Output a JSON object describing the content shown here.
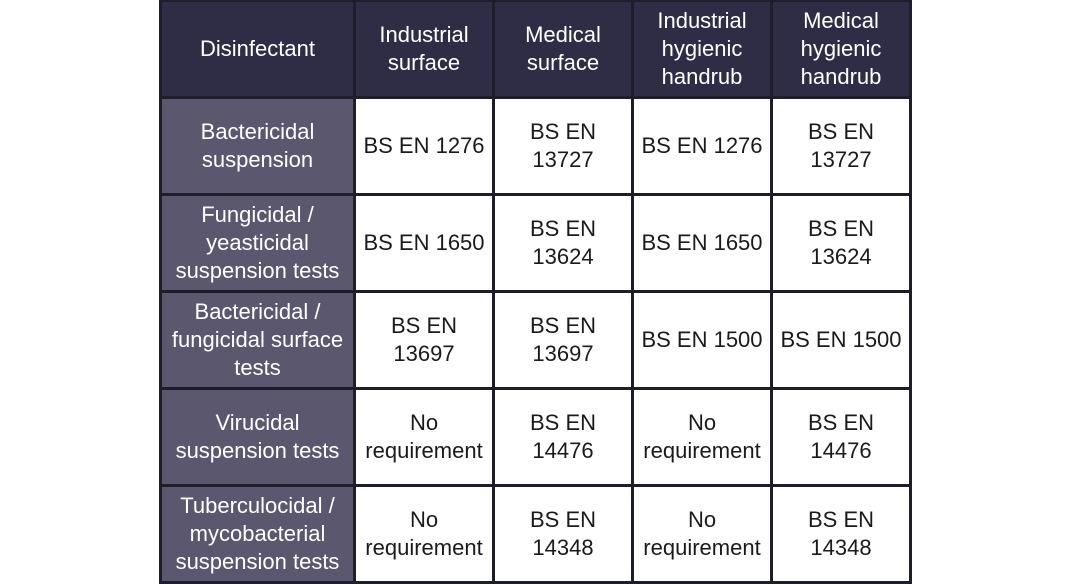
{
  "table": {
    "header": [
      "Disinfectant",
      "Industrial surface",
      "Medical surface",
      "Industrial hygienic handrub",
      "Medical hygienic handrub"
    ],
    "rows": [
      [
        "Bactericidal suspension",
        "BS EN 1276",
        "BS EN 13727",
        "BS EN 1276",
        "BS EN 13727"
      ],
      [
        "Fungicidal / yeasticidal suspension tests",
        "BS EN 1650",
        "BS EN 13624",
        "BS EN 1650",
        "BS EN 13624"
      ],
      [
        "Bactericidal / fungicidal surface tests",
        "BS EN 13697",
        "BS EN 13697",
        "BS EN 1500",
        "BS EN 1500"
      ],
      [
        "Virucidal suspension tests",
        "No requirement",
        "BS EN 14476",
        "No requirement",
        "BS EN 14476"
      ],
      [
        "Tuberculocidal / mycobacterial suspension tests",
        "No requirement",
        "BS EN 14348",
        "No requirement",
        "BS EN 14348"
      ]
    ]
  }
}
